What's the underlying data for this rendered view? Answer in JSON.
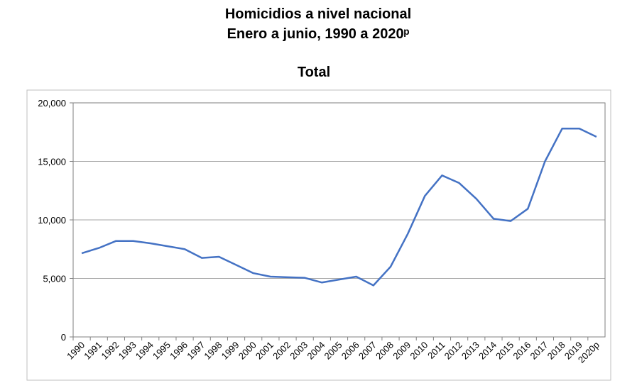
{
  "chart_data": {
    "type": "line",
    "title": "Homicidios a nivel nacional",
    "subtitle": "Enero a junio, 1990 a 2020ᵖ",
    "chart_title": "Total",
    "categories": [
      "1990",
      "1991",
      "1992",
      "1993",
      "1994",
      "1995",
      "1996",
      "1997",
      "1998",
      "1999",
      "2000",
      "2001",
      "2002",
      "2003",
      "2004",
      "2005",
      "2006",
      "2007",
      "2008",
      "2009",
      "2010",
      "2011",
      "2012",
      "2013",
      "2014",
      "2015",
      "2016",
      "2017",
      "2018",
      "2019",
      "2020p"
    ],
    "series": [
      {
        "name": "Total",
        "color": "#4472c4",
        "values": [
          7150,
          7600,
          8200,
          8200,
          8000,
          7750,
          7500,
          6750,
          6850,
          6150,
          5450,
          5150,
          5100,
          5050,
          4650,
          4900,
          5150,
          4400,
          6000,
          8800,
          12050,
          13800,
          13150,
          11800,
          10100,
          9900,
          10950,
          15000,
          17800,
          17800,
          17100
        ]
      }
    ],
    "ylim": [
      0,
      20000
    ],
    "yticks": [
      0,
      {
        "value": 5000,
        "label": "5,000"
      },
      {
        "value": 10000,
        "label": "10,000"
      },
      {
        "value": 15000,
        "label": "15,000"
      },
      {
        "value": 20000,
        "label": "20,000"
      }
    ],
    "grid": true
  }
}
